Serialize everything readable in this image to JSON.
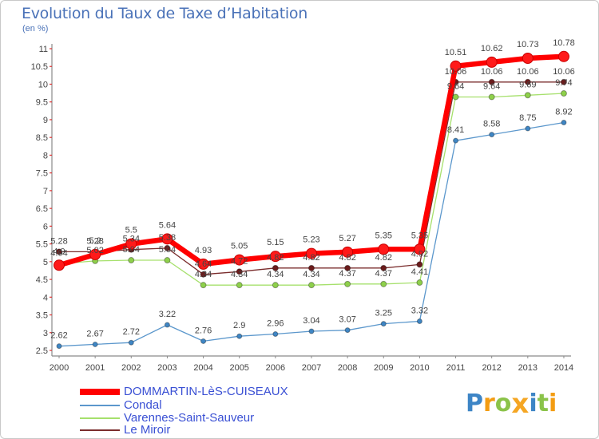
{
  "chart_data": {
    "type": "line",
    "title": "Evolution du Taux de Taxe d’Habitation",
    "subtitle": "(en %)",
    "x": [
      2000,
      2001,
      2002,
      2003,
      2004,
      2005,
      2006,
      2007,
      2008,
      2009,
      2010,
      2011,
      2012,
      2013,
      2014
    ],
    "ylim": [
      2.5,
      11
    ],
    "yticks": [
      2.5,
      3,
      3.5,
      4,
      4.5,
      5,
      5.5,
      6,
      6.5,
      7,
      7.5,
      8,
      8.5,
      9,
      9.5,
      10,
      10.5,
      11
    ],
    "series": [
      {
        "name": "DOMMARTIN-LèS-CUISEAUX",
        "color": "#ff0000",
        "marker_color": "#ff1a1a",
        "values": [
          4.9,
          5.2,
          5.5,
          5.64,
          4.93,
          5.05,
          5.15,
          5.23,
          5.27,
          5.35,
          5.35,
          10.51,
          10.62,
          10.73,
          10.78
        ]
      },
      {
        "name": "Condal",
        "color": "#5b97cc",
        "marker_color": "#3f86c4",
        "values": [
          2.62,
          2.67,
          2.72,
          3.22,
          2.76,
          2.9,
          2.96,
          3.04,
          3.07,
          3.25,
          3.32,
          8.41,
          8.58,
          8.75,
          8.92
        ]
      },
      {
        "name": "Varennes-Saint-Sauveur",
        "color": "#a6e06c",
        "marker_color": "#8ed04b",
        "values": [
          4.94,
          5.02,
          5.04,
          5.04,
          4.34,
          4.34,
          4.34,
          4.34,
          4.37,
          4.37,
          4.41,
          9.64,
          9.64,
          9.69,
          9.74
        ]
      },
      {
        "name": "Le Miroir",
        "color": "#7a2c2c",
        "marker_color": "#6b1c1c",
        "values": [
          5.28,
          5.28,
          5.34,
          5.38,
          4.64,
          4.72,
          4.82,
          4.82,
          4.82,
          4.82,
          4.92,
          10.06,
          10.06,
          10.06,
          10.06
        ]
      }
    ]
  },
  "logo": {
    "text": "Proxiti",
    "colors": [
      "#3d85c6",
      "#f39c12",
      "#8bc34a",
      "#f5a623",
      "#3d85c6",
      "#8bc34a",
      "#f39c12"
    ]
  }
}
